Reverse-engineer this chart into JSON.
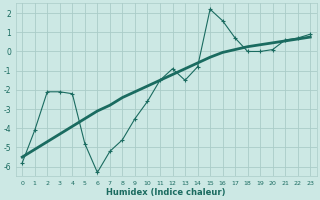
{
  "xlabel": "Humidex (Indice chaleur)",
  "ylabel": "",
  "bg_color": "#cce8e4",
  "grid_color": "#aaccc8",
  "line_color": "#1a6b60",
  "xlim": [
    -0.5,
    23.5
  ],
  "ylim": [
    -6.5,
    2.5
  ],
  "xticks": [
    0,
    1,
    2,
    3,
    4,
    5,
    6,
    7,
    8,
    9,
    10,
    11,
    12,
    13,
    14,
    15,
    16,
    17,
    18,
    19,
    20,
    21,
    22,
    23
  ],
  "yticks": [
    -6,
    -5,
    -4,
    -3,
    -2,
    -1,
    0,
    1,
    2
  ],
  "line1_x": [
    0,
    1,
    2,
    3,
    4,
    5,
    6,
    7,
    8,
    9,
    10,
    11,
    12,
    13,
    14,
    15,
    16,
    17,
    18,
    19,
    20,
    21,
    22,
    23
  ],
  "line1_y": [
    -5.8,
    -4.1,
    -2.1,
    -2.1,
    -2.2,
    -4.8,
    -6.3,
    -5.2,
    -4.6,
    -3.5,
    -2.6,
    -1.5,
    -0.9,
    -1.5,
    -0.8,
    2.2,
    1.6,
    0.7,
    0.0,
    0.0,
    0.1,
    0.6,
    0.7,
    0.9
  ],
  "line2_x": [
    0,
    1,
    2,
    3,
    4,
    5,
    6,
    7,
    8,
    9,
    10,
    11,
    12,
    13,
    14,
    15,
    16,
    17,
    18,
    19,
    20,
    21,
    22,
    23
  ],
  "line2_y": [
    -5.5,
    -5.1,
    -4.7,
    -4.3,
    -3.9,
    -3.5,
    -3.1,
    -2.8,
    -2.4,
    -2.1,
    -1.8,
    -1.5,
    -1.2,
    -0.9,
    -0.6,
    -0.3,
    -0.05,
    0.1,
    0.25,
    0.35,
    0.45,
    0.55,
    0.65,
    0.75
  ]
}
